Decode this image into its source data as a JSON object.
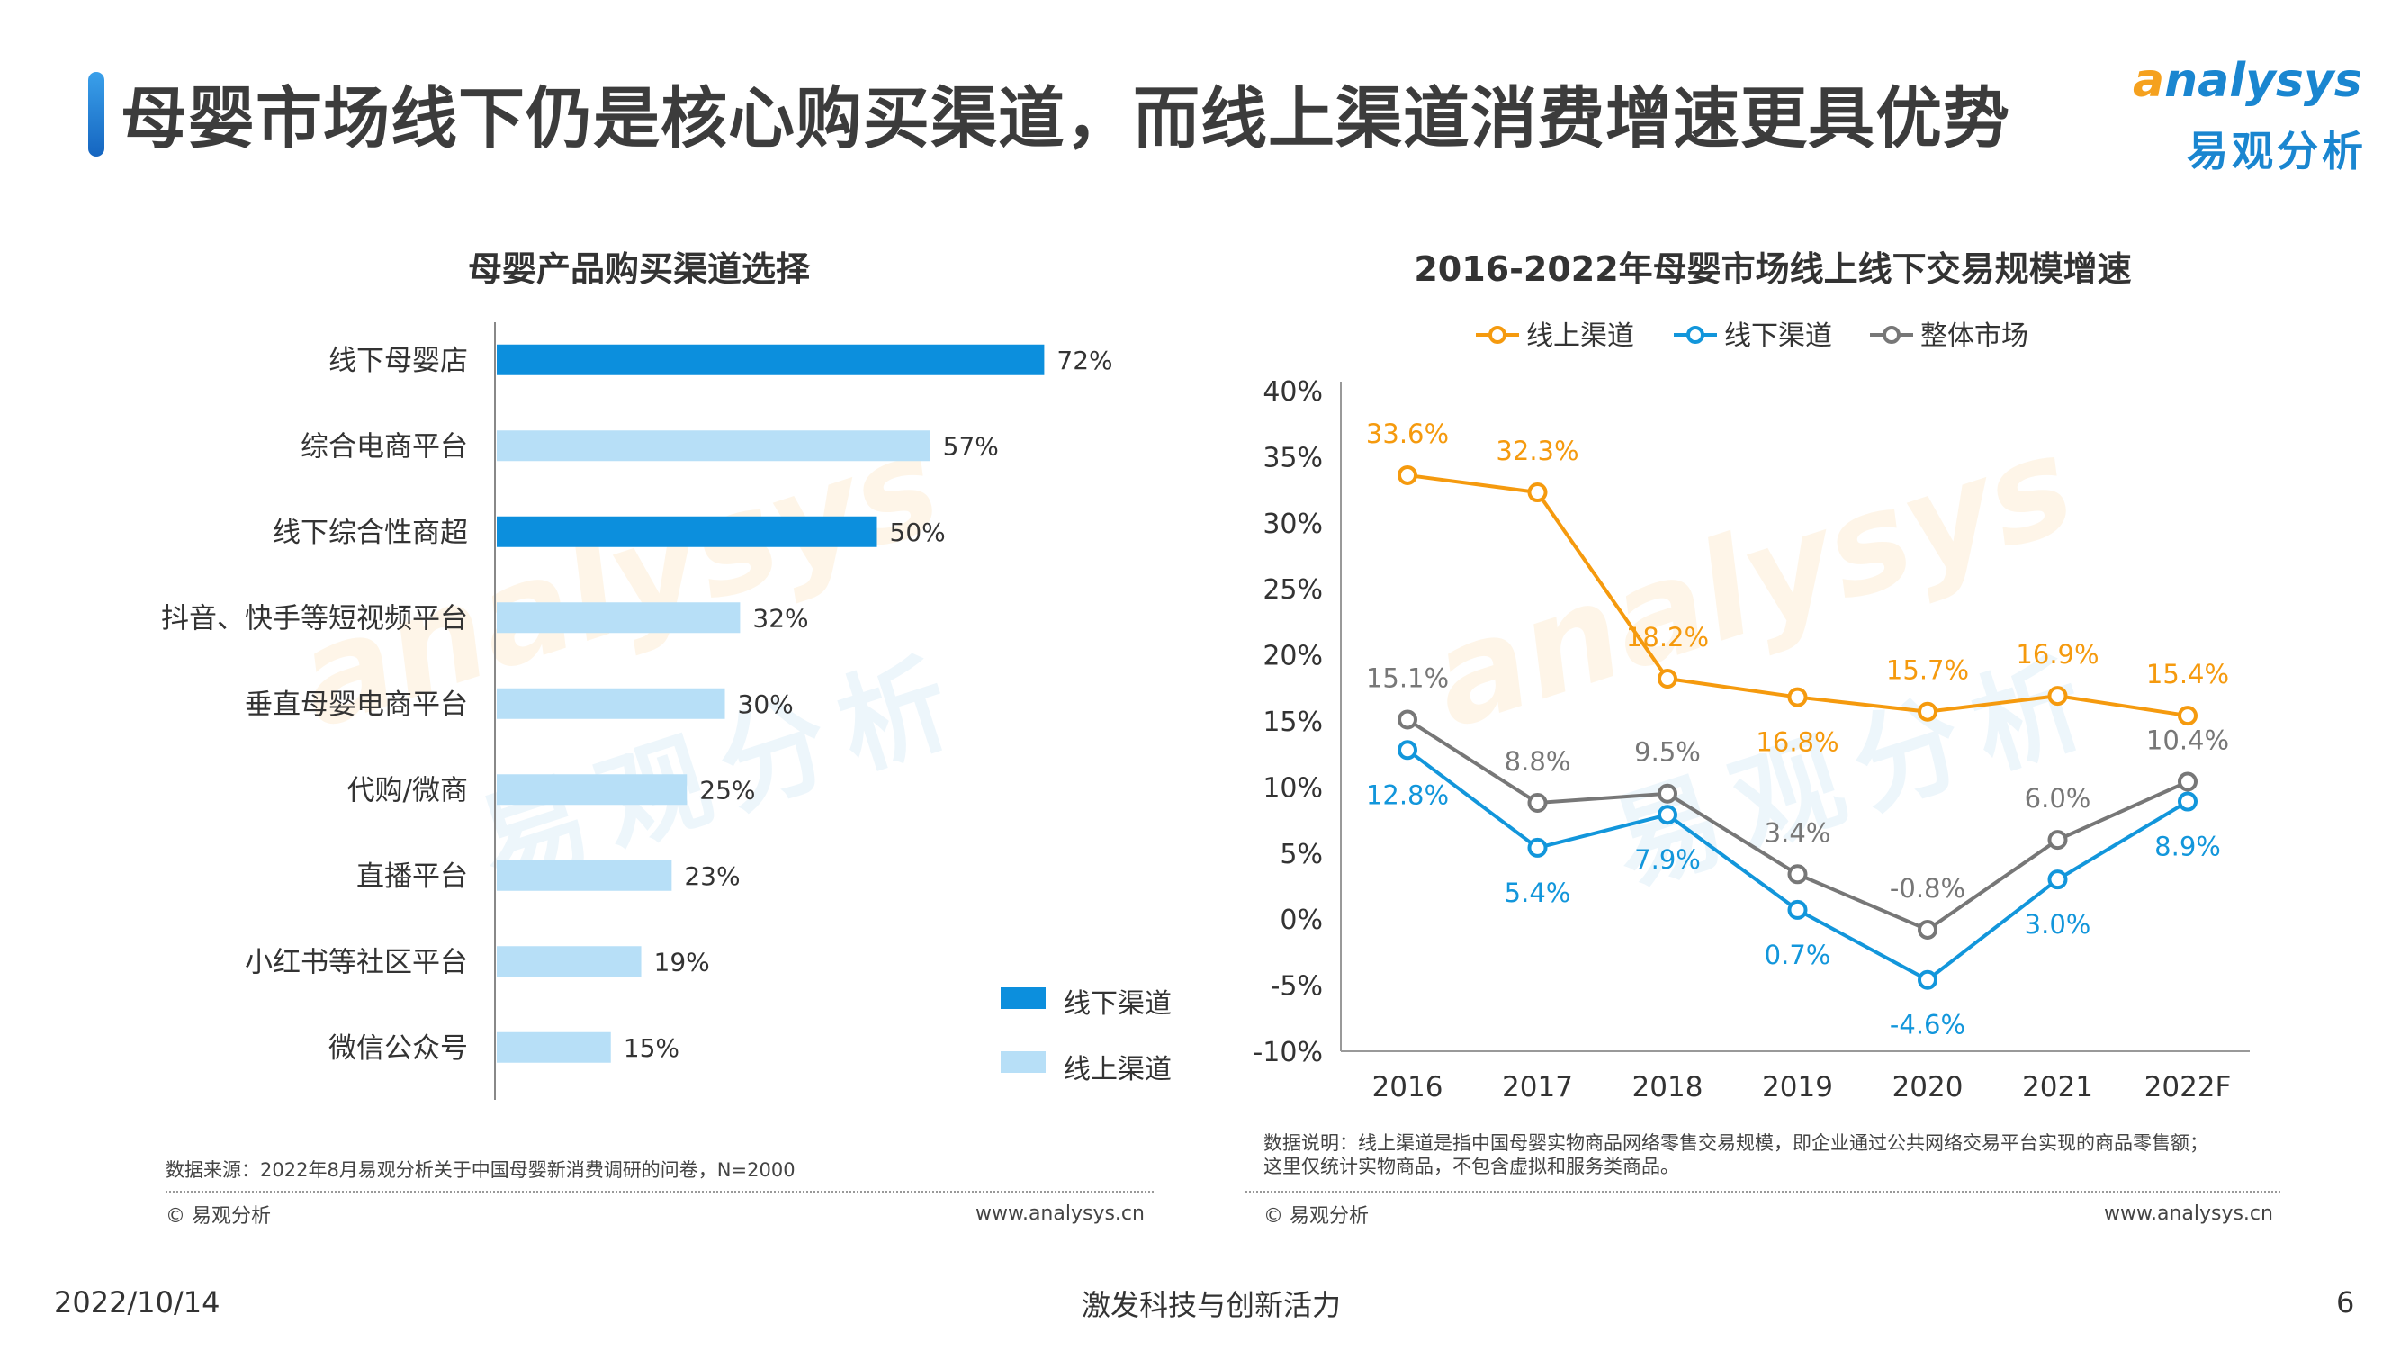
{
  "header": {
    "title": "母婴市场线下仍是核心购买渠道，而线上渠道消费增速更具优势",
    "logo_en": "nalysys",
    "logo_en_mark": "a",
    "logo_cn": "易观分析"
  },
  "watermark": {
    "en": "analysys",
    "cn": "易观分析"
  },
  "colors": {
    "offline": "#0c8fdd",
    "online": "#b7dff7",
    "line_online": "#f59a0e",
    "line_offline": "#1296db",
    "line_total": "#777777"
  },
  "chart_data": [
    {
      "type": "bar",
      "orientation": "horizontal",
      "title": "母婴产品购买渠道选择",
      "categories": [
        "线下母婴店",
        "综合电商平台",
        "线下综合性商超",
        "抖音、快手等短视频平台",
        "垂直母婴电商平台",
        "代购/微商",
        "直播平台",
        "小红书等社区平台",
        "微信公众号"
      ],
      "values": [
        72,
        57,
        50,
        32,
        30,
        25,
        23,
        19,
        15
      ],
      "value_labels": [
        "72%",
        "57%",
        "50%",
        "32%",
        "30%",
        "25%",
        "23%",
        "19%",
        "15%"
      ],
      "channel": [
        "offline",
        "online",
        "offline",
        "online",
        "online",
        "online",
        "online",
        "online",
        "online"
      ],
      "legend": [
        "线下渠道",
        "线上渠道"
      ],
      "legend_position": "bottom-right",
      "xlim": [
        0,
        100
      ]
    },
    {
      "type": "line",
      "title": "2016-2022年母婴市场线上线下交易规模增速",
      "x": [
        "2016",
        "2017",
        "2018",
        "2019",
        "2020",
        "2021",
        "2022F"
      ],
      "ylim": [
        -10,
        40
      ],
      "yticks": [
        "40%",
        "35%",
        "30%",
        "25%",
        "20%",
        "15%",
        "10%",
        "5%",
        "0%",
        "-5%",
        "-10%"
      ],
      "legend_position": "top",
      "series": [
        {
          "name": "线上渠道",
          "values": [
            33.6,
            32.3,
            18.2,
            16.8,
            15.7,
            16.9,
            15.4
          ],
          "labels": [
            "33.6%",
            "32.3%",
            "18.2%",
            "16.8%",
            "15.7%",
            "16.9%",
            "15.4%"
          ]
        },
        {
          "name": "线下渠道",
          "values": [
            12.8,
            5.4,
            7.9,
            0.7,
            -4.6,
            3.0,
            8.9
          ],
          "labels": [
            "12.8%",
            "5.4%",
            "7.9%",
            "0.7%",
            "-4.6%",
            "3.0%",
            "8.9%"
          ]
        },
        {
          "name": "整体市场",
          "values": [
            15.1,
            8.8,
            9.5,
            3.4,
            -0.8,
            6.0,
            10.4
          ],
          "labels": [
            "15.1%",
            "8.8%",
            "9.5%",
            "3.4%",
            "-0.8%",
            "6.0%",
            "10.4%"
          ]
        }
      ]
    }
  ],
  "notes": {
    "left_source": "数据来源：2022年8月易观分析关于中国母婴新消费调研的问卷，N=2000",
    "right_line1": "数据说明：线上渠道是指中国母婴实物商品网络零售交易规模，即企业通过公共网络交易平台实现的商品零售额；",
    "right_line2": "这里仅统计实物商品，不包含虚拟和服务类商品。",
    "copyright": "© 易观分析",
    "website": "www.analysys.cn"
  },
  "footer": {
    "date": "2022/10/14",
    "slogan": "激发科技与创新活力",
    "page": "6"
  }
}
